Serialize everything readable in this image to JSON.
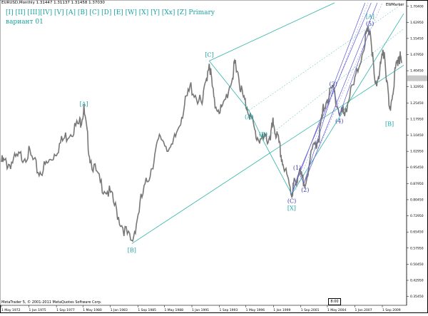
{
  "header": {
    "symbol_line": "EURUSD,Monthly  1.31447 1.31137 1.31458 1.37030",
    "wave_menu": "[I]  [II] [III][IV] [V]  [A]  [B]  [C]  [D]  [E]  [W]  [X]  [Y]  [Xx] [Z]     Primary",
    "variant": "вариант 01"
  },
  "footer": {
    "copyright": "MetaTrader 5, © 2001-2011 MetaQuotes Software Corp.",
    "zoom_label": "8:00"
  },
  "indicator": {
    "name": "EWMarker"
  },
  "colors": {
    "price": "#777777",
    "channel": "#2fb3a8",
    "fork": "#5a5ad2",
    "wave_teal": "#1aa3a3",
    "wave_blue": "#3b3bb5"
  },
  "chart_data": {
    "type": "line",
    "title": "EURUSD,Monthly",
    "ylim": [
      0.32,
      1.72
    ],
    "y_ticks": [
      "1.70400",
      "1.62950",
      "1.55450",
      "1.47950",
      "1.40450",
      "1.32950",
      "1.25450",
      "1.17950",
      "1.10450",
      "1.02950",
      "0.95450",
      "0.87950",
      "0.80450",
      "0.72950",
      "0.65450",
      "0.57950",
      "0.50450",
      "0.42950",
      "0.35450"
    ],
    "x_ticks": [
      "1 May 1972",
      "1 Jan 1975",
      "1 Sep 1977",
      "1 May 1980",
      "1 Jan 1983",
      "1 Sep 1985",
      "1 May 1988",
      "1 Jan 1991",
      "1 Sep 1993",
      "1 May 1996",
      "1 Jan 1999",
      "1 Sep 2001",
      "1 May 2004",
      "1 Jan 2007",
      "1 Sep 2009"
    ],
    "series": [
      {
        "x": [
          1972.3,
          1973.0,
          1974.0,
          1975.0,
          1976.0,
          1977.0,
          1978.0,
          1979.0,
          1980.0,
          1980.4,
          1981.0,
          1982.0,
          1983.0,
          1984.0,
          1985.1,
          1986.0,
          1987.0,
          1987.9,
          1989.0,
          1990.0,
          1990.9,
          1992.0,
          1992.7,
          1993.2,
          1994.0,
          1995.0,
          1995.3,
          1996.0,
          1996.6,
          1997.3,
          1998.0,
          1998.7,
          1999.0,
          1999.5,
          2000.0,
          2000.8,
          2001.0,
          2001.5,
          2002.0,
          2003.0,
          2003.5,
          2004.0,
          2004.9,
          2005.5,
          2006.0,
          2007.0,
          2008.0,
          2008.5,
          2009.0,
          2009.5,
          2009.9,
          2010.4,
          2010.9,
          2011.3,
          2011.6
        ],
        "values": [
          0.98,
          0.97,
          1.0,
          1.02,
          0.93,
          0.98,
          1.06,
          1.12,
          1.16,
          1.22,
          1.0,
          0.88,
          0.83,
          0.7,
          0.6,
          0.8,
          0.95,
          1.1,
          1.03,
          1.2,
          1.33,
          1.24,
          1.45,
          1.25,
          1.22,
          1.38,
          1.45,
          1.28,
          1.22,
          1.1,
          1.08,
          1.1,
          1.16,
          1.07,
          0.96,
          0.83,
          0.87,
          0.93,
          0.88,
          1.05,
          1.1,
          1.25,
          1.32,
          1.2,
          1.22,
          1.35,
          1.55,
          1.6,
          1.32,
          1.42,
          1.5,
          1.2,
          1.38,
          1.48,
          1.44
        ]
      }
    ],
    "wave_labels": [
      {
        "text": "[A]",
        "x": 1980.4,
        "y": 1.22
      },
      {
        "text": "[B]",
        "x": 1985.1,
        "y": 0.6
      },
      {
        "text": "[C]",
        "x": 1992.7,
        "y": 1.45
      },
      {
        "text": "(A)",
        "x": 1996.6,
        "y": 1.22
      },
      {
        "text": "(B)",
        "x": 1998.0,
        "y": 1.08
      },
      {
        "text": "(C)",
        "x": 2000.8,
        "y": 0.83
      },
      {
        "text": "[X]",
        "x": 2000.8,
        "y": 0.83
      },
      {
        "text": "(1)",
        "x": 2001.5,
        "y": 0.93
      },
      {
        "text": "(2)",
        "x": 2002.0,
        "y": 0.88
      },
      {
        "text": "(3)",
        "x": 2004.9,
        "y": 1.32
      },
      {
        "text": "(4)",
        "x": 2005.5,
        "y": 1.2
      },
      {
        "text": "(5)",
        "x": 2008.5,
        "y": 1.6
      },
      {
        "text": "[A]",
        "x": 2008.5,
        "y": 1.6
      },
      {
        "text": "[B]",
        "x": 2010.4,
        "y": 1.2
      }
    ]
  }
}
